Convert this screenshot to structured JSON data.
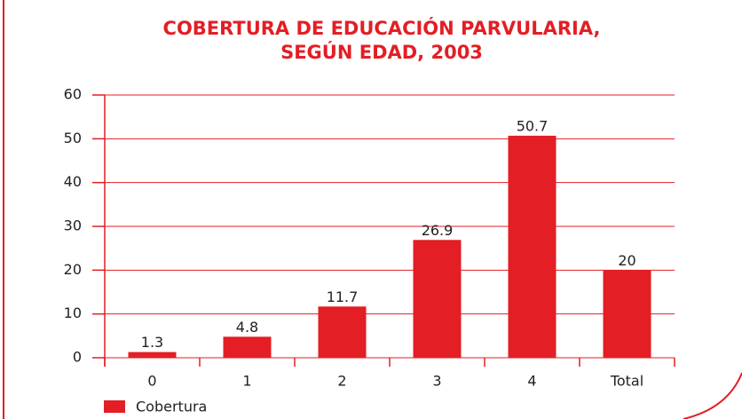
{
  "chart_data": {
    "type": "bar",
    "title": [
      "COBERTURA DE EDUCACIÓN PARVULARIA,",
      "SEGÚN EDAD, 2003"
    ],
    "categories": [
      "0",
      "1",
      "2",
      "3",
      "4",
      "Total"
    ],
    "series": [
      {
        "name": "Cobertura",
        "color": "#e31e24",
        "values": [
          1.3,
          4.8,
          11.7,
          26.9,
          50.7,
          20
        ]
      }
    ],
    "ylim": [
      0,
      60
    ],
    "yticks": [
      0,
      10,
      20,
      30,
      40,
      50,
      60
    ],
    "grid": true,
    "legend": "bottom-left"
  }
}
